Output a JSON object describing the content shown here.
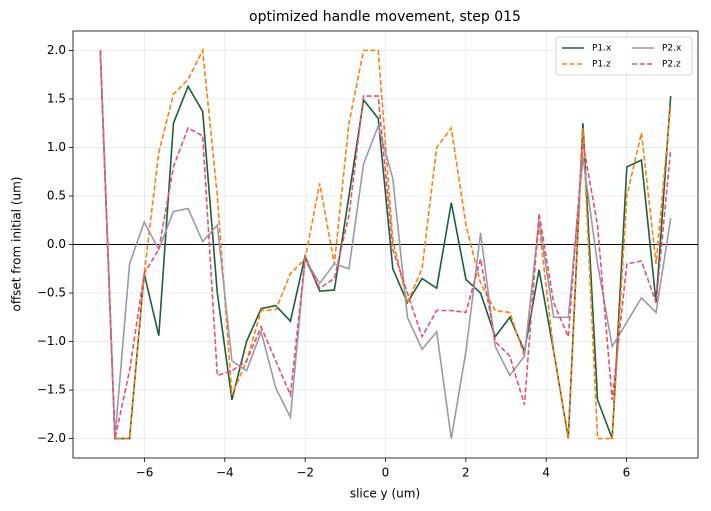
{
  "chart_data": {
    "type": "line",
    "title": "optimized handle movement, step 015",
    "x_label": "slice y (um)",
    "y_label": "offset from initial (um)",
    "x": [
      -7.1,
      -6.736,
      -6.372,
      -6.008,
      -5.644,
      -5.279,
      -4.915,
      -4.551,
      -4.187,
      -3.823,
      -3.459,
      -3.095,
      -2.731,
      -2.367,
      -2.003,
      -1.638,
      -1.274,
      -0.91,
      -0.546,
      -0.182,
      0.182,
      0.546,
      0.91,
      1.274,
      1.638,
      2.003,
      2.367,
      2.731,
      3.095,
      3.459,
      3.823,
      4.187,
      4.551,
      4.915,
      5.279,
      5.644,
      6.008,
      6.372,
      6.736,
      7.1
    ],
    "series": [
      {
        "name": "P1.x",
        "color": "#1f5f3a",
        "linestyle": "solid",
        "values": [
          2.0,
          -2.0,
          -2.0,
          -0.3,
          -0.94,
          1.25,
          1.63,
          1.37,
          -0.5,
          -1.6,
          -1.0,
          -0.66,
          -0.63,
          -0.79,
          -0.12,
          -0.48,
          -0.47,
          0.5,
          1.49,
          1.3,
          -0.25,
          -0.6,
          -0.35,
          -0.45,
          0.43,
          -0.36,
          -0.5,
          -0.95,
          -0.75,
          -1.1,
          -0.26,
          -1.1,
          -2.0,
          1.25,
          -1.6,
          -2.0,
          0.8,
          0.87,
          -0.6,
          1.53
        ]
      },
      {
        "name": "P1.z",
        "color": "#ff7f0e",
        "linestyle": "dashed",
        "values": [
          2.0,
          -2.0,
          -2.0,
          -0.3,
          0.95,
          1.55,
          1.7,
          2.0,
          0.5,
          -1.55,
          -1.2,
          -0.68,
          -0.67,
          -0.3,
          -0.15,
          0.63,
          -0.2,
          1.25,
          2.0,
          2.0,
          0.05,
          -0.6,
          -0.25,
          1.0,
          1.2,
          0.2,
          -0.4,
          -0.68,
          -0.7,
          -1.15,
          0.2,
          -1.1,
          -2.0,
          1.2,
          -2.0,
          -2.0,
          0.5,
          1.15,
          -0.2,
          1.45
        ]
      },
      {
        "name": "P2.x",
        "color": "#9a9aab",
        "linestyle": "solid",
        "values": [
          2.0,
          -2.0,
          -0.2,
          0.23,
          -0.05,
          0.34,
          0.37,
          0.03,
          0.2,
          -1.2,
          -1.3,
          -0.9,
          -1.48,
          -1.78,
          -0.15,
          -0.4,
          -0.2,
          -0.25,
          0.83,
          1.22,
          0.68,
          -0.75,
          -1.08,
          -0.9,
          -2.0,
          -1.1,
          0.12,
          -1.05,
          -1.35,
          -1.15,
          0.25,
          -0.75,
          -0.75,
          0.9,
          -0.2,
          -1.05,
          -0.8,
          -0.55,
          -0.7,
          0.27
        ]
      },
      {
        "name": "P2.z",
        "color": "#e8506e",
        "linestyle": "dashed",
        "values": [
          2.0,
          -2.0,
          -1.3,
          -0.3,
          -0.05,
          0.8,
          1.2,
          1.12,
          -1.35,
          -1.3,
          -1.2,
          -0.85,
          -1.2,
          -1.55,
          -0.15,
          -0.45,
          -0.35,
          0.3,
          1.53,
          1.53,
          -0.05,
          -0.5,
          -0.95,
          -0.68,
          -0.68,
          -0.7,
          -0.15,
          -1.0,
          -1.15,
          -1.65,
          0.32,
          -0.6,
          -0.95,
          1.05,
          0.2,
          -1.6,
          -0.2,
          -0.17,
          -0.6,
          0.98
        ]
      }
    ],
    "hline": 0,
    "xlim": [
      -7.78,
      7.78
    ],
    "ylim": [
      -2.2,
      2.2
    ],
    "xticks": [
      {
        "value": -6,
        "label": "−6"
      },
      {
        "value": -4,
        "label": "−4"
      },
      {
        "value": -2,
        "label": "−2"
      },
      {
        "value": 0,
        "label": "0"
      },
      {
        "value": 2,
        "label": "2"
      },
      {
        "value": 4,
        "label": "4"
      },
      {
        "value": 6,
        "label": "6"
      }
    ],
    "yticks": [
      {
        "value": -2.0,
        "label": "−2.0"
      },
      {
        "value": -1.5,
        "label": "−1.5"
      },
      {
        "value": -1.0,
        "label": "−1.0"
      },
      {
        "value": -0.5,
        "label": "−0.5"
      },
      {
        "value": 0,
        "label": "0.0"
      },
      {
        "value": 0.5,
        "label": "0.5"
      },
      {
        "value": 1.0,
        "label": "1.0"
      },
      {
        "value": 1.5,
        "label": "1.5"
      },
      {
        "value": 2.0,
        "label": "2.0"
      }
    ],
    "grid": true,
    "legend": "upper right"
  }
}
